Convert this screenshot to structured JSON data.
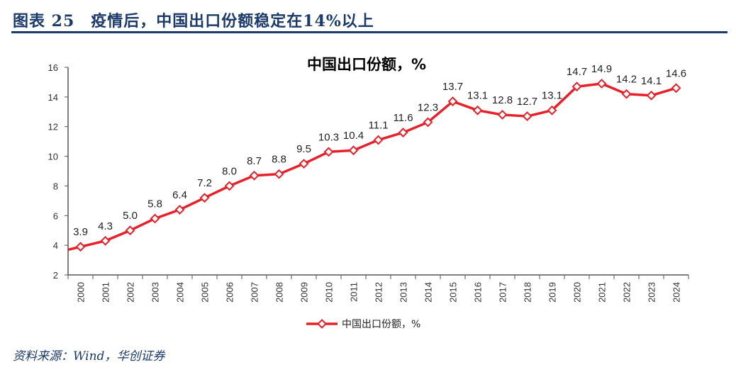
{
  "header": {
    "title": "图表 25　疫情后，中国出口份额稳定在14%以上"
  },
  "source": "资料来源：Wind，华创证券",
  "chart_data": {
    "type": "line",
    "title": "中国出口份额，%",
    "categories": [
      "2000",
      "2001",
      "2002",
      "2003",
      "2004",
      "2005",
      "2006",
      "2007",
      "2008",
      "2009",
      "2010",
      "2011",
      "2012",
      "2013",
      "2014",
      "2015",
      "2016",
      "2017",
      "2018",
      "2019",
      "2020",
      "2021",
      "2022",
      "2023",
      "2024"
    ],
    "series": [
      {
        "name": "中国出口份额，%",
        "values": [
          3.9,
          4.3,
          5.0,
          5.8,
          6.4,
          7.2,
          8.0,
          8.7,
          8.8,
          9.5,
          10.3,
          10.4,
          11.1,
          11.6,
          12.3,
          13.7,
          13.1,
          12.8,
          12.7,
          13.1,
          14.7,
          14.9,
          14.2,
          14.1,
          14.6
        ],
        "labels": [
          "3.9",
          "4.3",
          "5.0",
          "5.8",
          "6.4",
          "7.2",
          "8.0",
          "8.7",
          "8.8",
          "9.5",
          "10.3",
          "10.4",
          "11.1",
          "11.6",
          "12.3",
          "13.7",
          "13.1",
          "12.8",
          "12.7",
          "13.1",
          "14.7",
          "14.9",
          "14.2",
          "14.1",
          "14.6"
        ],
        "color": "#e8202a"
      }
    ],
    "ylim": [
      2,
      16
    ],
    "yticks": [
      "2",
      "4",
      "6",
      "8",
      "10",
      "12",
      "14",
      "16"
    ],
    "grid": false,
    "legend": "bottom",
    "xlabel": "",
    "ylabel": ""
  }
}
